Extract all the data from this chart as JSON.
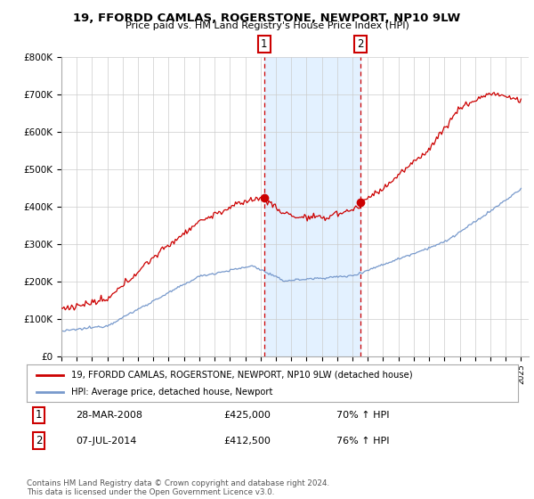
{
  "title": "19, FFORDD CAMLAS, ROGERSTONE, NEWPORT, NP10 9LW",
  "subtitle": "Price paid vs. HM Land Registry's House Price Index (HPI)",
  "ylim": [
    0,
    800000
  ],
  "yticks": [
    0,
    100000,
    200000,
    300000,
    400000,
    500000,
    600000,
    700000,
    800000
  ],
  "sale1_date": "28-MAR-2008",
  "sale1_price": 425000,
  "sale1_hpi": "70% ↑ HPI",
  "sale1_x": 2008.24,
  "sale2_date": "07-JUL-2014",
  "sale2_price": 412500,
  "sale2_hpi": "76% ↑ HPI",
  "sale2_x": 2014.52,
  "legend_label_red": "19, FFORDD CAMLAS, ROGERSTONE, NEWPORT, NP10 9LW (detached house)",
  "legend_label_blue": "HPI: Average price, detached house, Newport",
  "footer_text": "Contains HM Land Registry data © Crown copyright and database right 2024.\nThis data is licensed under the Open Government Licence v3.0.",
  "red_color": "#cc0000",
  "blue_color": "#7799cc",
  "shade_color": "#ddeeff",
  "vline_color": "#cc0000",
  "background_color": "#ffffff",
  "grid_color": "#cccccc"
}
